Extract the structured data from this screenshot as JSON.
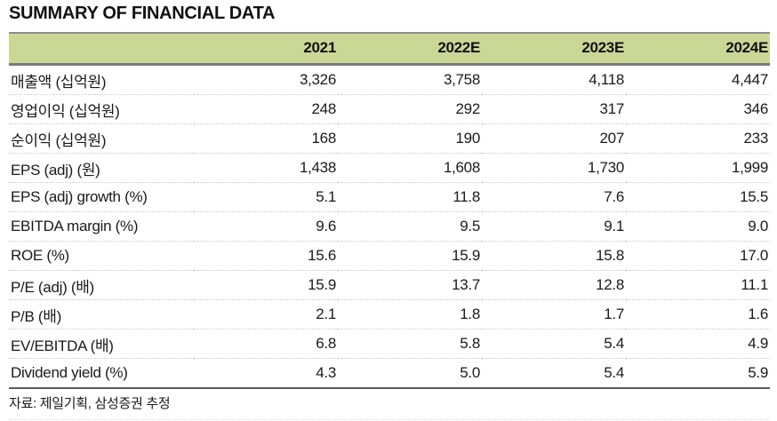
{
  "title": "SUMMARY OF FINANCIAL DATA",
  "table": {
    "columns": [
      "",
      "2021",
      "2022E",
      "2023E",
      "2024E"
    ],
    "rows": [
      {
        "label": "매출액 (십억원)",
        "values": [
          "3,326",
          "3,758",
          "4,118",
          "4,447"
        ]
      },
      {
        "label": "영업이익 (십억원)",
        "values": [
          "248",
          "292",
          "317",
          "346"
        ]
      },
      {
        "label": "순이익 (십억원)",
        "values": [
          "168",
          "190",
          "207",
          "233"
        ]
      },
      {
        "label": "EPS (adj) (원)",
        "values": [
          "1,438",
          "1,608",
          "1,730",
          "1,999"
        ]
      },
      {
        "label": "EPS (adj) growth (%)",
        "values": [
          "5.1",
          "11.8",
          "7.6",
          "15.5"
        ]
      },
      {
        "label": "EBITDA margin (%)",
        "values": [
          "9.6",
          "9.5",
          "9.1",
          "9.0"
        ]
      },
      {
        "label": "ROE (%)",
        "values": [
          "15.6",
          "15.9",
          "15.8",
          "17.0"
        ]
      },
      {
        "label": "P/E (adj) (배)",
        "values": [
          "15.9",
          "13.7",
          "12.8",
          "11.1"
        ]
      },
      {
        "label": "P/B (배)",
        "values": [
          "2.1",
          "1.8",
          "1.7",
          "1.6"
        ]
      },
      {
        "label": "EV/EBITDA (배)",
        "values": [
          "6.8",
          "5.8",
          "5.4",
          "4.9"
        ]
      },
      {
        "label": "Dividend yield (%)",
        "values": [
          "4.3",
          "5.0",
          "5.4",
          "5.9"
        ]
      }
    ]
  },
  "footer": {
    "source": "자료: 제일기획, 삼성증권 추정"
  },
  "colors": {
    "header_bg": "#cbd795",
    "table_top_border": "#8c8c8c",
    "header_bottom_border": "#7a7a7a",
    "table_bottom_border": "#5a5a5a",
    "row_divider": "#c9c9c9",
    "text": "#1a1a1a"
  }
}
